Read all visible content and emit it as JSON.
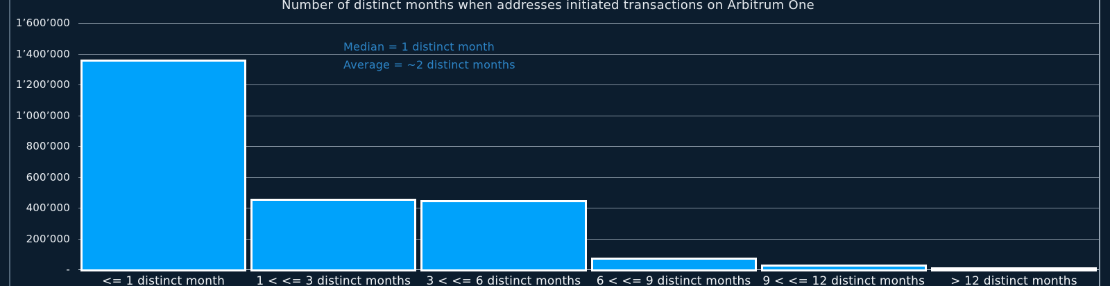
{
  "title": "Number of distinct months when addresses initiated transactions on Arbitrum One",
  "annotations": {
    "median": "Median = 1 distinct month",
    "average": "Average = ~2 distinct months"
  },
  "y_axis": {
    "tick_labels": [
      "1’600’000",
      "1’400’000",
      "1’200’000",
      "1’000’000",
      "800’000",
      "600’000",
      "400’000",
      "200’000",
      "-"
    ]
  },
  "colors": {
    "background": "#0c1d2e",
    "bar_fill": "#00a2fb",
    "bar_border": "#ffffff",
    "gridline": "#adbac7",
    "annotation_text": "#2d85c7",
    "axis_text": "#edf1f5",
    "title_text": "#e7ebef"
  },
  "chart_data": {
    "type": "bar",
    "title": "Number of distinct months when addresses initiated transactions on Arbitrum One",
    "categories": [
      "<= 1 distinct month",
      "1 < <= 3 distinct months",
      "3 < <= 6 distinct months",
      "6 < <= 9 distinct months",
      "9 < <= 12 distinct months",
      "> 12 distinct months"
    ],
    "values": [
      1360000,
      460000,
      450000,
      75000,
      30000,
      12000
    ],
    "xlabel": "",
    "ylabel": "",
    "ylim": [
      0,
      1600000
    ],
    "ytick_step": 200000,
    "grid": true,
    "legend": false,
    "annotations": [
      "Median = 1 distinct month",
      "Average = ~2 distinct months"
    ]
  }
}
